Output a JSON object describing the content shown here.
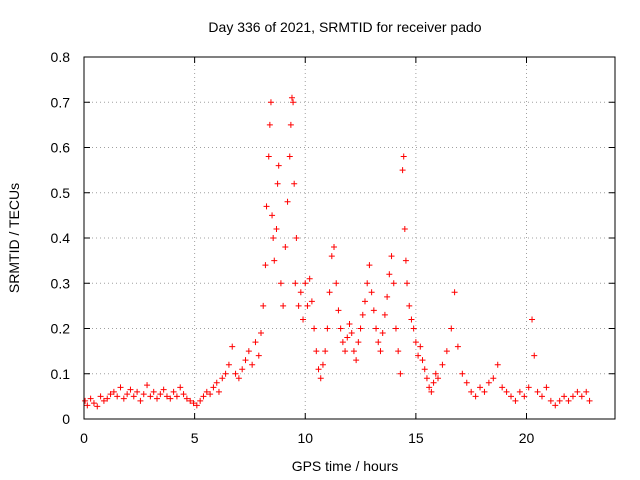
{
  "chart_data": {
    "type": "scatter",
    "title": "Day 336 of 2021, SRMTID for receiver pado",
    "xlabel": "GPS time / hours",
    "ylabel": "SRMTID / TECUs",
    "xlim": [
      0,
      24
    ],
    "ylim": [
      0,
      0.8
    ],
    "x_ticks": [
      0,
      5,
      10,
      15,
      20
    ],
    "x_tick_labels": [
      "0",
      "5",
      "10",
      "15",
      "20"
    ],
    "y_ticks": [
      0,
      0.1,
      0.2,
      0.3,
      0.4,
      0.5,
      0.6,
      0.7,
      0.8
    ],
    "y_tick_labels": [
      "0",
      "0.1",
      "0.2",
      "0.3",
      "0.4",
      "0.5",
      "0.6",
      "0.7",
      "0.8"
    ],
    "grid": true,
    "marker": "+",
    "marker_color": "#ff0000",
    "series": [
      {
        "name": "SRMTID",
        "points": [
          [
            0.05,
            0.04
          ],
          [
            0.15,
            0.03
          ],
          [
            0.3,
            0.045
          ],
          [
            0.45,
            0.035
          ],
          [
            0.6,
            0.028
          ],
          [
            0.75,
            0.05
          ],
          [
            0.9,
            0.04
          ],
          [
            1.05,
            0.045
          ],
          [
            1.2,
            0.055
          ],
          [
            1.35,
            0.06
          ],
          [
            1.5,
            0.05
          ],
          [
            1.65,
            0.07
          ],
          [
            1.8,
            0.045
          ],
          [
            1.95,
            0.055
          ],
          [
            2.1,
            0.065
          ],
          [
            2.25,
            0.05
          ],
          [
            2.4,
            0.06
          ],
          [
            2.55,
            0.04
          ],
          [
            2.7,
            0.055
          ],
          [
            2.85,
            0.075
          ],
          [
            3.0,
            0.05
          ],
          [
            3.15,
            0.06
          ],
          [
            3.3,
            0.045
          ],
          [
            3.45,
            0.055
          ],
          [
            3.6,
            0.065
          ],
          [
            3.75,
            0.05
          ],
          [
            3.9,
            0.045
          ],
          [
            4.05,
            0.06
          ],
          [
            4.2,
            0.05
          ],
          [
            4.35,
            0.07
          ],
          [
            4.5,
            0.055
          ],
          [
            4.65,
            0.045
          ],
          [
            4.8,
            0.04
          ],
          [
            4.95,
            0.035
          ],
          [
            5.1,
            0.03
          ],
          [
            5.25,
            0.04
          ],
          [
            5.4,
            0.05
          ],
          [
            5.55,
            0.06
          ],
          [
            5.7,
            0.055
          ],
          [
            5.85,
            0.07
          ],
          [
            6.0,
            0.08
          ],
          [
            6.1,
            0.06
          ],
          [
            6.25,
            0.09
          ],
          [
            6.4,
            0.1
          ],
          [
            6.55,
            0.12
          ],
          [
            6.7,
            0.16
          ],
          [
            6.85,
            0.1
          ],
          [
            7.0,
            0.09
          ],
          [
            7.15,
            0.11
          ],
          [
            7.3,
            0.13
          ],
          [
            7.45,
            0.15
          ],
          [
            7.6,
            0.12
          ],
          [
            7.75,
            0.17
          ],
          [
            7.9,
            0.14
          ],
          [
            8.0,
            0.19
          ],
          [
            8.1,
            0.25
          ],
          [
            8.2,
            0.34
          ],
          [
            8.25,
            0.47
          ],
          [
            8.35,
            0.58
          ],
          [
            8.4,
            0.65
          ],
          [
            8.45,
            0.7
          ],
          [
            8.5,
            0.45
          ],
          [
            8.55,
            0.4
          ],
          [
            8.6,
            0.35
          ],
          [
            8.7,
            0.42
          ],
          [
            8.75,
            0.52
          ],
          [
            8.8,
            0.56
          ],
          [
            8.9,
            0.3
          ],
          [
            9.0,
            0.25
          ],
          [
            9.1,
            0.38
          ],
          [
            9.2,
            0.48
          ],
          [
            9.3,
            0.58
          ],
          [
            9.35,
            0.65
          ],
          [
            9.4,
            0.71
          ],
          [
            9.45,
            0.7
          ],
          [
            9.5,
            0.52
          ],
          [
            9.55,
            0.3
          ],
          [
            9.6,
            0.4
          ],
          [
            9.7,
            0.25
          ],
          [
            9.8,
            0.28
          ],
          [
            9.9,
            0.22
          ],
          [
            10.0,
            0.3
          ],
          [
            10.1,
            0.25
          ],
          [
            10.2,
            0.31
          ],
          [
            10.3,
            0.26
          ],
          [
            10.4,
            0.2
          ],
          [
            10.5,
            0.15
          ],
          [
            10.6,
            0.11
          ],
          [
            10.7,
            0.09
          ],
          [
            10.8,
            0.12
          ],
          [
            10.9,
            0.15
          ],
          [
            11.0,
            0.2
          ],
          [
            11.1,
            0.28
          ],
          [
            11.2,
            0.36
          ],
          [
            11.3,
            0.38
          ],
          [
            11.4,
            0.3
          ],
          [
            11.5,
            0.24
          ],
          [
            11.6,
            0.2
          ],
          [
            11.7,
            0.17
          ],
          [
            11.8,
            0.15
          ],
          [
            11.9,
            0.18
          ],
          [
            12.0,
            0.21
          ],
          [
            12.1,
            0.19
          ],
          [
            12.2,
            0.15
          ],
          [
            12.3,
            0.13
          ],
          [
            12.4,
            0.17
          ],
          [
            12.5,
            0.2
          ],
          [
            12.6,
            0.23
          ],
          [
            12.7,
            0.26
          ],
          [
            12.8,
            0.3
          ],
          [
            12.9,
            0.34
          ],
          [
            13.0,
            0.28
          ],
          [
            13.1,
            0.24
          ],
          [
            13.2,
            0.2
          ],
          [
            13.3,
            0.17
          ],
          [
            13.4,
            0.15
          ],
          [
            13.5,
            0.19
          ],
          [
            13.6,
            0.23
          ],
          [
            13.7,
            0.27
          ],
          [
            13.8,
            0.32
          ],
          [
            13.9,
            0.36
          ],
          [
            14.0,
            0.3
          ],
          [
            14.1,
            0.2
          ],
          [
            14.2,
            0.15
          ],
          [
            14.3,
            0.1
          ],
          [
            14.4,
            0.55
          ],
          [
            14.45,
            0.58
          ],
          [
            14.5,
            0.42
          ],
          [
            14.55,
            0.35
          ],
          [
            14.6,
            0.3
          ],
          [
            14.7,
            0.25
          ],
          [
            14.8,
            0.22
          ],
          [
            14.9,
            0.2
          ],
          [
            15.0,
            0.17
          ],
          [
            15.1,
            0.14
          ],
          [
            15.2,
            0.16
          ],
          [
            15.3,
            0.13
          ],
          [
            15.4,
            0.11
          ],
          [
            15.5,
            0.09
          ],
          [
            15.6,
            0.07
          ],
          [
            15.7,
            0.06
          ],
          [
            15.8,
            0.08
          ],
          [
            15.9,
            0.1
          ],
          [
            16.0,
            0.09
          ],
          [
            16.2,
            0.12
          ],
          [
            16.4,
            0.15
          ],
          [
            16.6,
            0.2
          ],
          [
            16.75,
            0.28
          ],
          [
            16.9,
            0.16
          ],
          [
            17.1,
            0.1
          ],
          [
            17.3,
            0.08
          ],
          [
            17.5,
            0.06
          ],
          [
            17.7,
            0.05
          ],
          [
            17.9,
            0.07
          ],
          [
            18.1,
            0.06
          ],
          [
            18.3,
            0.08
          ],
          [
            18.5,
            0.09
          ],
          [
            18.7,
            0.12
          ],
          [
            18.9,
            0.07
          ],
          [
            19.1,
            0.06
          ],
          [
            19.3,
            0.05
          ],
          [
            19.5,
            0.04
          ],
          [
            19.7,
            0.06
          ],
          [
            19.9,
            0.05
          ],
          [
            20.1,
            0.07
          ],
          [
            20.25,
            0.22
          ],
          [
            20.35,
            0.14
          ],
          [
            20.5,
            0.06
          ],
          [
            20.7,
            0.05
          ],
          [
            20.9,
            0.07
          ],
          [
            21.1,
            0.04
          ],
          [
            21.3,
            0.03
          ],
          [
            21.5,
            0.04
          ],
          [
            21.7,
            0.05
          ],
          [
            21.9,
            0.04
          ],
          [
            22.1,
            0.05
          ],
          [
            22.3,
            0.06
          ],
          [
            22.5,
            0.05
          ],
          [
            22.7,
            0.06
          ],
          [
            22.85,
            0.04
          ]
        ]
      }
    ]
  }
}
